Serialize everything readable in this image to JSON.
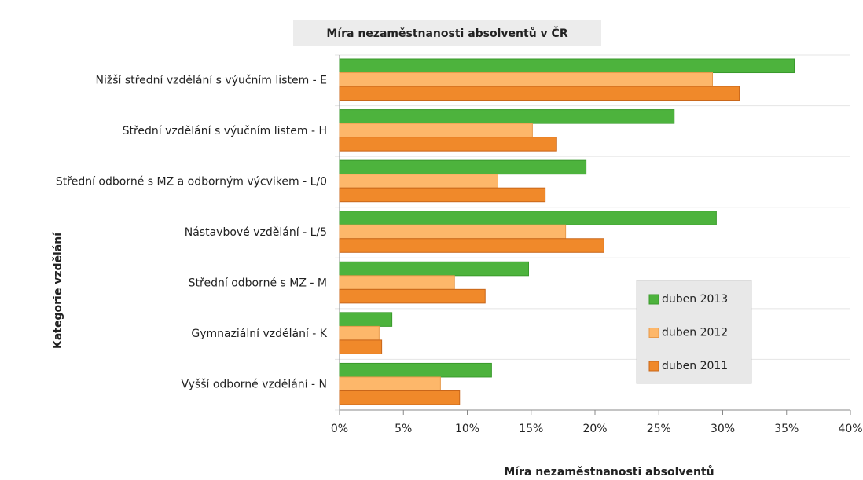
{
  "chart_data": {
    "type": "bar",
    "orientation": "horizontal",
    "title": "Míra nezaměstnanosti absolventů v ČR",
    "x_label": "Míra nezaměstnanosti absolventů",
    "y_label": "Kategorie vzdělání",
    "categories": [
      "Nižší střední vzdělání s výučním listem - E",
      "Střední vzdělání s výučním listem - H",
      "Střední odborné s MZ a odborným výcvikem - L/0",
      "Nástavbové vzdělání - L/5",
      "Střední odborné s MZ - M",
      "Gymnaziální vzdělání - K",
      "Vyšší odborné vzdělání - N"
    ],
    "series": [
      {
        "name": "duben 2013",
        "color": "#4db33d",
        "values": [
          35.6,
          26.2,
          19.3,
          29.5,
          14.8,
          4.1,
          11.9
        ]
      },
      {
        "name": "duben 2012",
        "color": "#fdb76a",
        "values": [
          29.2,
          15.1,
          12.4,
          17.7,
          9.0,
          3.1,
          7.9
        ]
      },
      {
        "name": "duben 2011",
        "color": "#f0892a",
        "values": [
          31.3,
          17.0,
          16.1,
          20.7,
          11.4,
          3.3,
          9.4
        ]
      }
    ],
    "xlim": [
      0,
      40
    ],
    "xticks": [
      {
        "value": 0,
        "label": "0%"
      },
      {
        "value": 5,
        "label": "5%"
      },
      {
        "value": 10,
        "label": "10%"
      },
      {
        "value": 15,
        "label": "15%"
      },
      {
        "value": 20,
        "label": "20%"
      },
      {
        "value": 25,
        "label": "25%"
      },
      {
        "value": 30,
        "label": "30%"
      },
      {
        "value": 35,
        "label": "35%"
      },
      {
        "value": 40,
        "label": "40%"
      }
    ],
    "legend": "lower-right"
  }
}
